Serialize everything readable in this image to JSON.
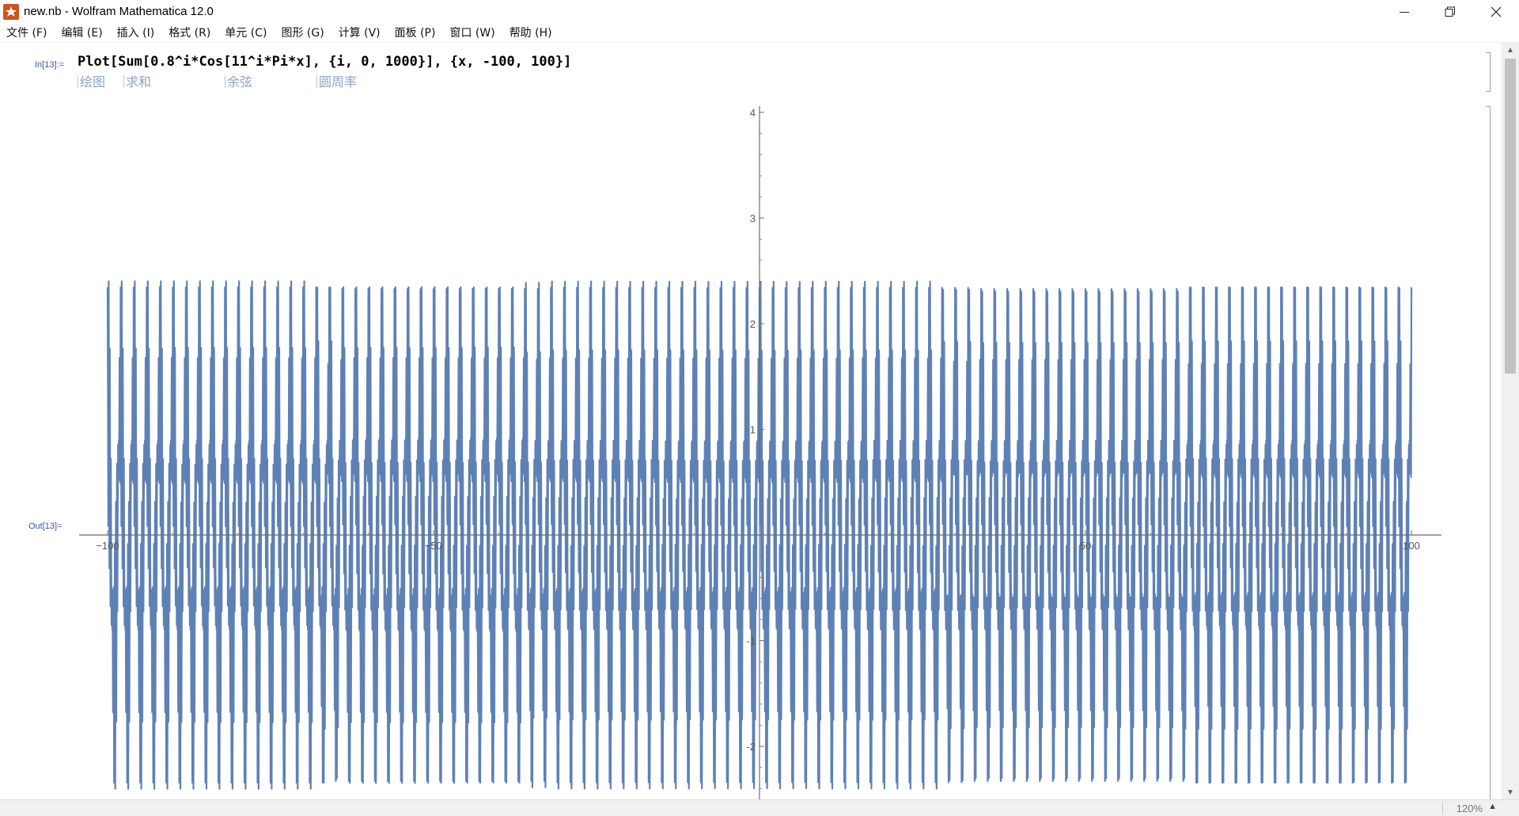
{
  "window": {
    "title": "new.nb - Wolfram Mathematica 12.0",
    "controls": {
      "minimize": "–",
      "restore": "❐",
      "close": "✕"
    }
  },
  "menu": [
    "文件 (F)",
    "编辑 (E)",
    "插入 (I)",
    "格式 (R)",
    "单元 (C)",
    "图形 (G)",
    "计算 (V)",
    "面板 (P)",
    "窗口 (W)",
    "帮助 (H)"
  ],
  "cell": {
    "in_label": "In[13]:=",
    "out_label": "Out[13]=",
    "input": "Plot[Sum[0.8^i*Cos[11^i*Pi*x], {i, 0, 1000}], {x, -100, 100}]",
    "hints": [
      "绘图",
      "求和",
      "余弦",
      "圆周率"
    ]
  },
  "status": {
    "zoom": "120%"
  },
  "colors": {
    "plot_line": "#5e81b5",
    "axis": "#6e6e6e",
    "label_blue": "#3a55a0"
  },
  "chart_data": {
    "type": "line",
    "title": "",
    "xlabel": "",
    "ylabel": "",
    "xlim": [
      -100,
      100
    ],
    "ylim": [
      -2.5,
      4
    ],
    "x_ticks": [
      -100,
      -50,
      50,
      100
    ],
    "x_tick_labels": [
      "−100",
      "−50",
      "50",
      "100"
    ],
    "y_ticks": [
      -2,
      -1,
      1,
      2,
      3,
      4
    ],
    "y_tick_labels": [
      "-2",
      "-1",
      "1",
      "2",
      "3",
      "4"
    ],
    "grid": false,
    "series": [
      {
        "name": "",
        "function": "Sum[0.8^i*Cos[11^i*Pi*x], {i, 0, 1000}]",
        "x": [
          -100,
          -99.5,
          -99,
          -98.5,
          -98,
          -97.5,
          -97,
          -96.5,
          -96,
          -95.5,
          -95,
          -94.5,
          -94,
          -93.5,
          -93,
          -92.5,
          -92,
          -91.5,
          -91,
          -90.5,
          -90,
          -89.5,
          -89,
          -88.5,
          -88,
          -87.5,
          -87,
          -86.5,
          -86,
          -85.5,
          -85,
          -84.5,
          -84,
          -83.5,
          -83,
          -82.5,
          -82,
          -81.5,
          -81,
          -80.5,
          -80,
          -79.5,
          -79,
          -78.5,
          -78,
          -77.5,
          -77,
          -76.5,
          -76,
          -75.5,
          -75,
          -74.5,
          -74,
          -73.5,
          -73,
          -72.5,
          -72,
          -71.5,
          -71,
          -70.5,
          -70,
          -69.5,
          -69,
          -68.5,
          -68,
          -67.5,
          -67,
          -66.5,
          -66,
          -65.5,
          -65,
          -64.5,
          -64,
          -63.5,
          -63,
          -62.5,
          -62,
          -61.5,
          -61,
          -60.5,
          -60,
          -59.5,
          -59,
          -58.5,
          -58,
          -57.5,
          -57,
          -56.5,
          -56,
          -55.5,
          -55,
          -54.5,
          -54,
          -53.5,
          -53,
          -52.5,
          -52,
          -51.5,
          -51,
          -50.5,
          -50,
          -49.5,
          -49,
          -48.5,
          -48,
          -47.5,
          -47,
          -46.5,
          -46,
          -45.5,
          -45,
          -44.5,
          -44,
          -43.5,
          -43,
          -42.5,
          -42,
          -41.5,
          -41,
          -40.5,
          -40,
          -39.5,
          -39,
          -38.5,
          -38,
          -37.5,
          -37,
          -36.5,
          -36,
          -35.5,
          -35,
          -34.5,
          -34,
          -33.5,
          -33,
          -32.5,
          -32,
          -31.5,
          -31,
          -30.5,
          -30,
          -29.5,
          -29,
          -28.5,
          -28,
          -27.5,
          -27,
          -26.5,
          -26,
          -25.5,
          -25,
          -24.5,
          -24,
          -23.5,
          -23,
          -22.5,
          -22,
          -21.5,
          -21,
          -20.5,
          -20,
          -19.5,
          -19,
          -18.5,
          -18,
          -17.5,
          -17,
          -16.5,
          -16,
          -15.5,
          -15,
          -14.5,
          -14,
          -13.5,
          -13,
          -12.5,
          -12,
          -11.5,
          -11,
          -10.5,
          -10,
          -9.5,
          -9,
          -8.5,
          -8,
          -7.5,
          -7,
          -6.5,
          -6,
          -5.5,
          -5,
          -4.5,
          -4,
          -3.5,
          -3,
          -2.5,
          -2,
          -1.5,
          -1,
          -0.5,
          0,
          0.5,
          1,
          1.5,
          2,
          2.5,
          3,
          3.5,
          4,
          4.5,
          5,
          5.5,
          6,
          6.5,
          7,
          7.5,
          8,
          8.5,
          9,
          9.5,
          10,
          10.5,
          11,
          11.5,
          12,
          12.5,
          13,
          13.5,
          14,
          14.5,
          15,
          15.5,
          16,
          16.5,
          17,
          17.5,
          18,
          18.5,
          19,
          19.5,
          20,
          20.5,
          21,
          21.5,
          22,
          22.5,
          23,
          23.5,
          24,
          24.5,
          25,
          25.5,
          26,
          26.5,
          27,
          27.5,
          28,
          28.5,
          29,
          29.5,
          30,
          30.5,
          31,
          31.5,
          32,
          32.5,
          33,
          33.5,
          34,
          34.5,
          35,
          35.5,
          36,
          36.5,
          37,
          37.5,
          38,
          38.5,
          39,
          39.5,
          40,
          40.5,
          41,
          41.5,
          42,
          42.5,
          43,
          43.5,
          44,
          44.5,
          45,
          45.5,
          46,
          46.5,
          47,
          47.5,
          48,
          48.5,
          49,
          49.5,
          50,
          50.5,
          51,
          51.5,
          52,
          52.5,
          53,
          53.5,
          54,
          54.5,
          55,
          55.5,
          56,
          56.5,
          57,
          57.5,
          58,
          58.5,
          59,
          59.5,
          60,
          60.5,
          61,
          61.5,
          62,
          62.5,
          63,
          63.5,
          64,
          64.5,
          65,
          65.5,
          66,
          66.5,
          67,
          67.5,
          68,
          68.5,
          69,
          69.5,
          70,
          70.5,
          71,
          71.5,
          72,
          72.5,
          73,
          73.5,
          74,
          74.5,
          75,
          75.5,
          76,
          76.5,
          77,
          77.5,
          78,
          78.5,
          79,
          79.5,
          80,
          80.5,
          81,
          81.5,
          82,
          82.5,
          83,
          83.5,
          84,
          84.5,
          85,
          85.5,
          86,
          86.5,
          87,
          87.5,
          88,
          88.5,
          89,
          89.5,
          90,
          90.5,
          91,
          91.5,
          92,
          92.5,
          93,
          93.5,
          94,
          94.5,
          95,
          95.5,
          96,
          96.5,
          97,
          97.5,
          98,
          98.5,
          99,
          99.5,
          100
        ]
      }
    ]
  }
}
